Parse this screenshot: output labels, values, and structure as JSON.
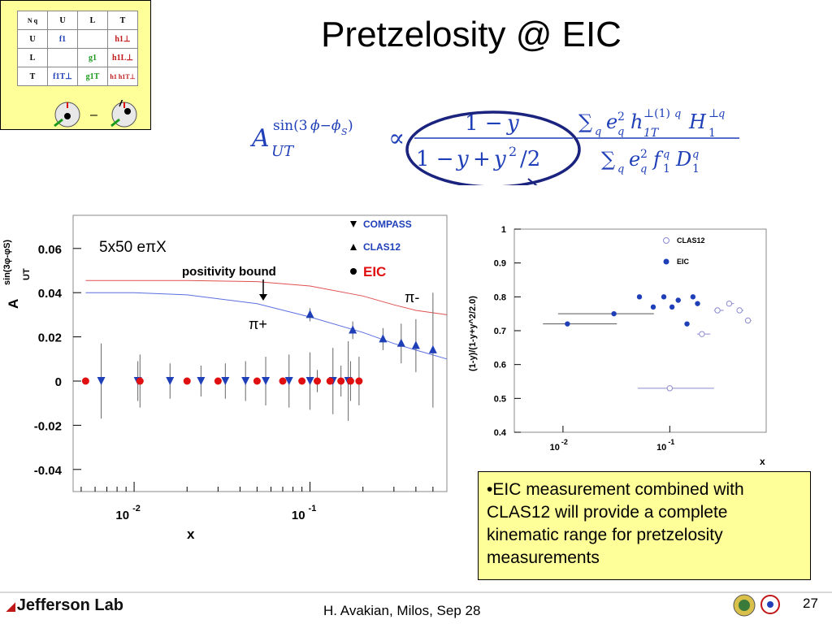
{
  "slide": {
    "title": "Pretzelosity @  EIC",
    "page_number": "27",
    "footer": "H. Avakian, Milos,  Sep 28",
    "logo_text": "Jefferson Lab"
  },
  "tmd_table": {
    "corner": "N  q",
    "cols": [
      "U",
      "L",
      "T"
    ],
    "rows": [
      {
        "label": "U",
        "cells": [
          "f1",
          "",
          "h1⊥"
        ]
      },
      {
        "label": "L",
        "cells": [
          "",
          "g1",
          "h1L⊥"
        ]
      },
      {
        "label": "T",
        "cells": [
          "f1T⊥",
          "g1T",
          "h1 h1T⊥"
        ]
      }
    ],
    "minus": "–"
  },
  "info_box": {
    "text": "•EIC measurement combined with CLAS12 will provide a complete kinematic range for pretzelosity measurements"
  },
  "colors": {
    "highlight_yellow": "#ffff99",
    "compass_blue": "#1f3fb8",
    "eic_red": "#e01010",
    "ellipse_navy": "#1a237e",
    "bound_red": "#e05050",
    "curve_blue": "#5a6fe0"
  },
  "chart_data": [
    {
      "type": "scatter",
      "xscale": "log",
      "xlim": [
        0.0045,
        0.6
      ],
      "ylim": [
        -0.05,
        0.075
      ],
      "xlabel": "x",
      "ylabel": "A_UT^{sin(3φ-φS)}",
      "x_tick_labels": [
        "10^-2",
        "10^-1"
      ],
      "y_tick_labels": [
        "0.06",
        "0.04",
        "0.02",
        "0",
        "-0.02",
        "-0.04"
      ],
      "annotations": {
        "beam": "5x50 eπX",
        "bound_label": "positivity bound",
        "pi_minus": "π-",
        "pi_plus": "π+"
      },
      "legend": [
        {
          "name": "COMPASS",
          "marker": "triangle-down"
        },
        {
          "name": "CLAS12",
          "marker": "triangle-up"
        },
        {
          "name": "EIC",
          "marker": "circle"
        }
      ],
      "series": [
        {
          "name": "COMPASS",
          "x": [
            0.0065,
            0.0105,
            0.016,
            0.024,
            0.033,
            0.043,
            0.056,
            0.076,
            0.1,
            0.135,
            0.165
          ],
          "y": [
            0,
            0,
            0,
            0,
            0,
            0,
            0,
            0,
            0,
            0,
            0
          ],
          "err": [
            0.017,
            0.009,
            0.008,
            0.007,
            0.008,
            0.009,
            0.011,
            0.012,
            0.013,
            0.015,
            0.018
          ]
        },
        {
          "name": "CLAS12",
          "x": [
            0.1,
            0.175,
            0.26,
            0.33,
            0.4,
            0.5
          ],
          "y": [
            0.03,
            0.023,
            0.019,
            0.017,
            0.016,
            0.014
          ],
          "err": [
            0.003,
            0.004,
            0.005,
            0.009,
            0.012,
            0.026
          ]
        },
        {
          "name": "EIC",
          "x": [
            0.0053,
            0.0108,
            0.02,
            0.03,
            0.05,
            0.07,
            0.09,
            0.11,
            0.13,
            0.15,
            0.17,
            0.19
          ],
          "y": [
            0,
            0,
            0,
            0,
            0,
            0,
            0,
            0,
            0,
            0,
            0,
            0
          ],
          "err": [
            0,
            0.012,
            0,
            0,
            0,
            0,
            0,
            0.005,
            0,
            0.007,
            0.009,
            0.011
          ]
        }
      ],
      "curves": [
        {
          "name": "positivity bound",
          "x": [
            0.0053,
            0.02,
            0.05,
            0.1,
            0.2,
            0.3,
            0.4,
            0.6
          ],
          "y": [
            0.0455,
            0.0455,
            0.045,
            0.043,
            0.0385,
            0.0345,
            0.032,
            0.03
          ]
        },
        {
          "name": "π+ model",
          "x": [
            0.0053,
            0.01,
            0.02,
            0.05,
            0.1,
            0.2,
            0.3,
            0.4,
            0.6
          ],
          "y": [
            0.04,
            0.04,
            0.039,
            0.035,
            0.029,
            0.022,
            0.017,
            0.014,
            0.01
          ]
        }
      ]
    },
    {
      "type": "scatter",
      "xscale": "log",
      "xlim": [
        0.0035,
        0.8
      ],
      "ylim": [
        0.4,
        1.0
      ],
      "xlabel": "x",
      "ylabel": "(1-y)/(1-y+y^2/2.0)",
      "x_tick_labels": [
        "10^-2",
        "10^-1"
      ],
      "y_tick_labels": [
        "1",
        "0.9",
        "0.8",
        "0.7",
        "0.6",
        "0.5",
        "0.4"
      ],
      "legend": [
        {
          "name": "CLAS12",
          "marker": "open-circle"
        },
        {
          "name": "EIC",
          "marker": "filled-circle"
        }
      ],
      "series": [
        {
          "name": "EIC",
          "x": [
            0.011,
            0.03,
            0.052,
            0.07,
            0.088,
            0.105,
            0.12,
            0.145,
            0.165,
            0.182
          ],
          "y": [
            0.72,
            0.75,
            0.8,
            0.77,
            0.8,
            0.77,
            0.79,
            0.72,
            0.8,
            0.78
          ],
          "xerr_lo": [
            0.0045,
            0.021,
            0.0,
            0.0,
            0.0,
            0.0,
            0.0,
            0.0,
            0.0,
            0.0
          ],
          "xerr_hi": [
            0.021,
            0.041,
            0.0,
            0.0,
            0.0,
            0.0,
            0.0,
            0.0,
            0.0,
            0.0
          ]
        },
        {
          "name": "CLAS12",
          "x": [
            0.1,
            0.2,
            0.28,
            0.36,
            0.45,
            0.54
          ],
          "y": [
            0.53,
            0.69,
            0.76,
            0.78,
            0.76,
            0.73
          ],
          "xerr_lo": [
            0.05,
            0.02,
            0.02,
            0.02,
            0.02,
            0.02
          ],
          "xerr_hi": [
            0.16,
            0.04,
            0.04,
            0.04,
            0.04,
            0.04
          ]
        }
      ]
    }
  ]
}
